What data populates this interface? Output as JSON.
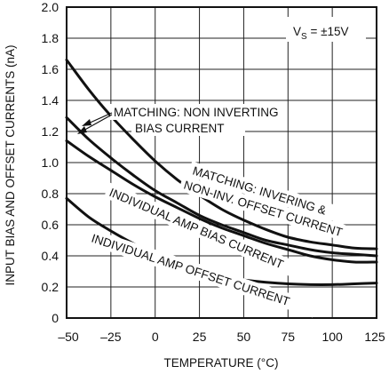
{
  "chart_data": {
    "type": "line",
    "xlabel": "TEMPERATURE (°C)",
    "ylabel": "INPUT BIAS AND OFFSET CURRENTS (nA)",
    "xlim": [
      -50,
      125
    ],
    "ylim": [
      0,
      2.0
    ],
    "x_ticks": [
      "–50",
      "–25",
      "0",
      "25",
      "50",
      "75",
      "100",
      "125"
    ],
    "y_ticks": [
      "0",
      "0.2",
      "0.4",
      "0.6",
      "0.8",
      "1.0",
      "1.2",
      "1.4",
      "1.6",
      "1.8",
      "2.0"
    ],
    "grid": true,
    "condition": {
      "main": "V",
      "sub": "S",
      "rest": " = ±15V"
    },
    "series": [
      {
        "name": "MATCHING: NON INVERTING BIAS CURRENT",
        "x": [
          -50,
          -37.5,
          -25,
          -12.5,
          0,
          12.5,
          25,
          37.5,
          50,
          62.5,
          75,
          87.5,
          100,
          112.5,
          125
        ],
        "y": [
          1.66,
          1.47,
          1.3,
          1.15,
          1.01,
          0.89,
          0.79,
          0.7,
          0.63,
          0.57,
          0.52,
          0.49,
          0.47,
          0.45,
          0.445
        ]
      },
      {
        "name": "MATCHING: INVERING & NON-INV. OFFSET CURRENT",
        "x": [
          -50,
          -37.5,
          -25,
          -12.5,
          0,
          12.5,
          25,
          37.5,
          50,
          62.5,
          75,
          87.5,
          100,
          112.5,
          125
        ],
        "y": [
          1.29,
          1.15,
          1.03,
          0.92,
          0.82,
          0.74,
          0.66,
          0.6,
          0.55,
          0.5,
          0.47,
          0.44,
          0.42,
          0.41,
          0.4
        ]
      },
      {
        "name": "INDIVIDUAL AMP BIAS CURRENT",
        "x": [
          -50,
          -37.5,
          -25,
          -12.5,
          0,
          12.5,
          25,
          37.5,
          50,
          62.5,
          75,
          87.5,
          100,
          112.5,
          125
        ],
        "y": [
          1.14,
          1.04,
          0.95,
          0.86,
          0.78,
          0.71,
          0.64,
          0.58,
          0.53,
          0.48,
          0.44,
          0.4,
          0.375,
          0.36,
          0.36
        ]
      },
      {
        "name": "INDIVIDUAL AMP OFFSET CURRENT",
        "x": [
          -50,
          -37.5,
          -25,
          -12.5,
          0,
          12.5,
          25,
          37.5,
          50,
          62.5,
          75,
          87.5,
          100,
          112.5,
          125
        ],
        "y": [
          0.77,
          0.65,
          0.56,
          0.48,
          0.41,
          0.35,
          0.3,
          0.265,
          0.245,
          0.23,
          0.22,
          0.215,
          0.215,
          0.22,
          0.225
        ]
      }
    ],
    "annotations": {
      "matching_noninv_line1": "MATCHING: NON INVERTING",
      "matching_noninv_line2": "BIAS CURRENT",
      "matching_inv_line1": "MATCHING: INVERING &",
      "matching_inv_line2": "NON-INV. OFFSET CURRENT",
      "indiv_bias": "INDIVIDUAL AMP BIAS CURRENT",
      "indiv_offset": "INDIVIDUAL AMP OFFSET CURRENT"
    }
  }
}
